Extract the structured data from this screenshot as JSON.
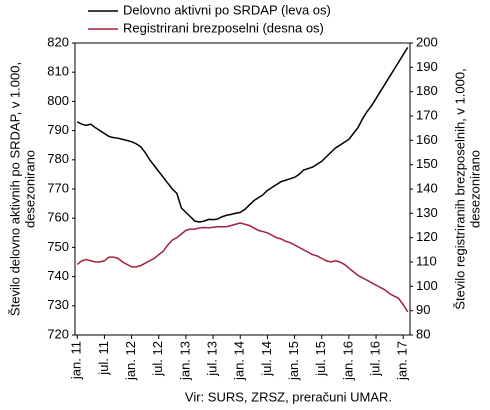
{
  "chart_data": {
    "type": "line",
    "series": [
      {
        "name": "Delovno aktivni po SRDAP (leva os)",
        "color": "#000000",
        "axis": "y",
        "values": [
          793,
          792.2,
          791.8,
          792.2,
          791,
          790,
          789,
          788,
          787.6,
          787.4,
          787,
          786.6,
          786.2,
          785.5,
          784.5,
          782.5,
          780,
          778,
          776,
          774,
          772,
          770,
          768.5,
          763.5,
          762,
          760.5,
          759,
          758.7,
          759,
          759.6,
          759.5,
          759.7,
          760.5,
          761,
          761.3,
          761.7,
          762,
          763,
          764.5,
          766,
          767,
          768,
          769.5,
          770.5,
          771.5,
          772.5,
          773,
          773.5,
          774,
          775,
          776.5,
          777,
          777.5,
          778.5,
          779.5,
          781,
          782.5,
          784,
          785,
          786,
          787,
          789,
          791,
          794,
          796.5,
          798.5,
          801,
          803.5,
          806,
          808.5,
          811,
          813.5,
          816,
          818.5
        ]
      },
      {
        "name": "Registrirani brezposelni (desna os)",
        "color": "#a3203f",
        "axis": "y2",
        "values": [
          109,
          110.5,
          111,
          110.5,
          110,
          110,
          110.5,
          112,
          112,
          111.5,
          110,
          109,
          108,
          108,
          108.5,
          109.5,
          110.5,
          111.5,
          113,
          114.5,
          117,
          119,
          120,
          121.5,
          123,
          123.5,
          123.5,
          124,
          124.2,
          124,
          124.3,
          124.5,
          124.5,
          124.5,
          125,
          125.5,
          126,
          125.5,
          125,
          124,
          123,
          122.5,
          122,
          121,
          120,
          119.5,
          118.5,
          118,
          117,
          116,
          115,
          114,
          113,
          112.5,
          111.5,
          110.5,
          110,
          110.5,
          110,
          109,
          107.5,
          106,
          104.5,
          103.5,
          102.5,
          101.5,
          100.5,
          99.5,
          98.5,
          97,
          96,
          95,
          92.5,
          89.5
        ]
      }
    ],
    "categories": [
      "jan. 11",
      null,
      null,
      null,
      null,
      null,
      "jul. 11",
      null,
      null,
      null,
      null,
      null,
      "jan. 12",
      null,
      null,
      null,
      null,
      null,
      "jul. 12",
      null,
      null,
      null,
      null,
      null,
      "jan. 13",
      null,
      null,
      null,
      null,
      null,
      "jul. 13",
      null,
      null,
      null,
      null,
      null,
      "jan. 14",
      null,
      null,
      null,
      null,
      null,
      "jul. 14",
      null,
      null,
      null,
      null,
      null,
      "jan. 15",
      null,
      null,
      null,
      null,
      null,
      "jul. 15",
      null,
      null,
      null,
      null,
      null,
      "jan. 16",
      null,
      null,
      null,
      null,
      null,
      "jul. 16",
      null,
      null,
      null,
      null,
      null,
      "jan. 17",
      null
    ],
    "ylim": [
      720,
      820
    ],
    "yticks": [
      720,
      730,
      740,
      750,
      760,
      770,
      780,
      790,
      800,
      810,
      820
    ],
    "y2lim": [
      80,
      200
    ],
    "y2ticks": [
      80,
      90,
      100,
      110,
      120,
      130,
      140,
      150,
      160,
      170,
      180,
      190,
      200
    ],
    "y_label": [
      "Število delovno aktivnih po SRDAP, v 1.000,",
      "desezonirano"
    ],
    "y2_label": [
      "Število registriranih brezposelnih, v 1.000,",
      "desezonirano"
    ],
    "source": "Vir: SURS, ZRSZ, preračuni UMAR.",
    "legend": "top"
  }
}
